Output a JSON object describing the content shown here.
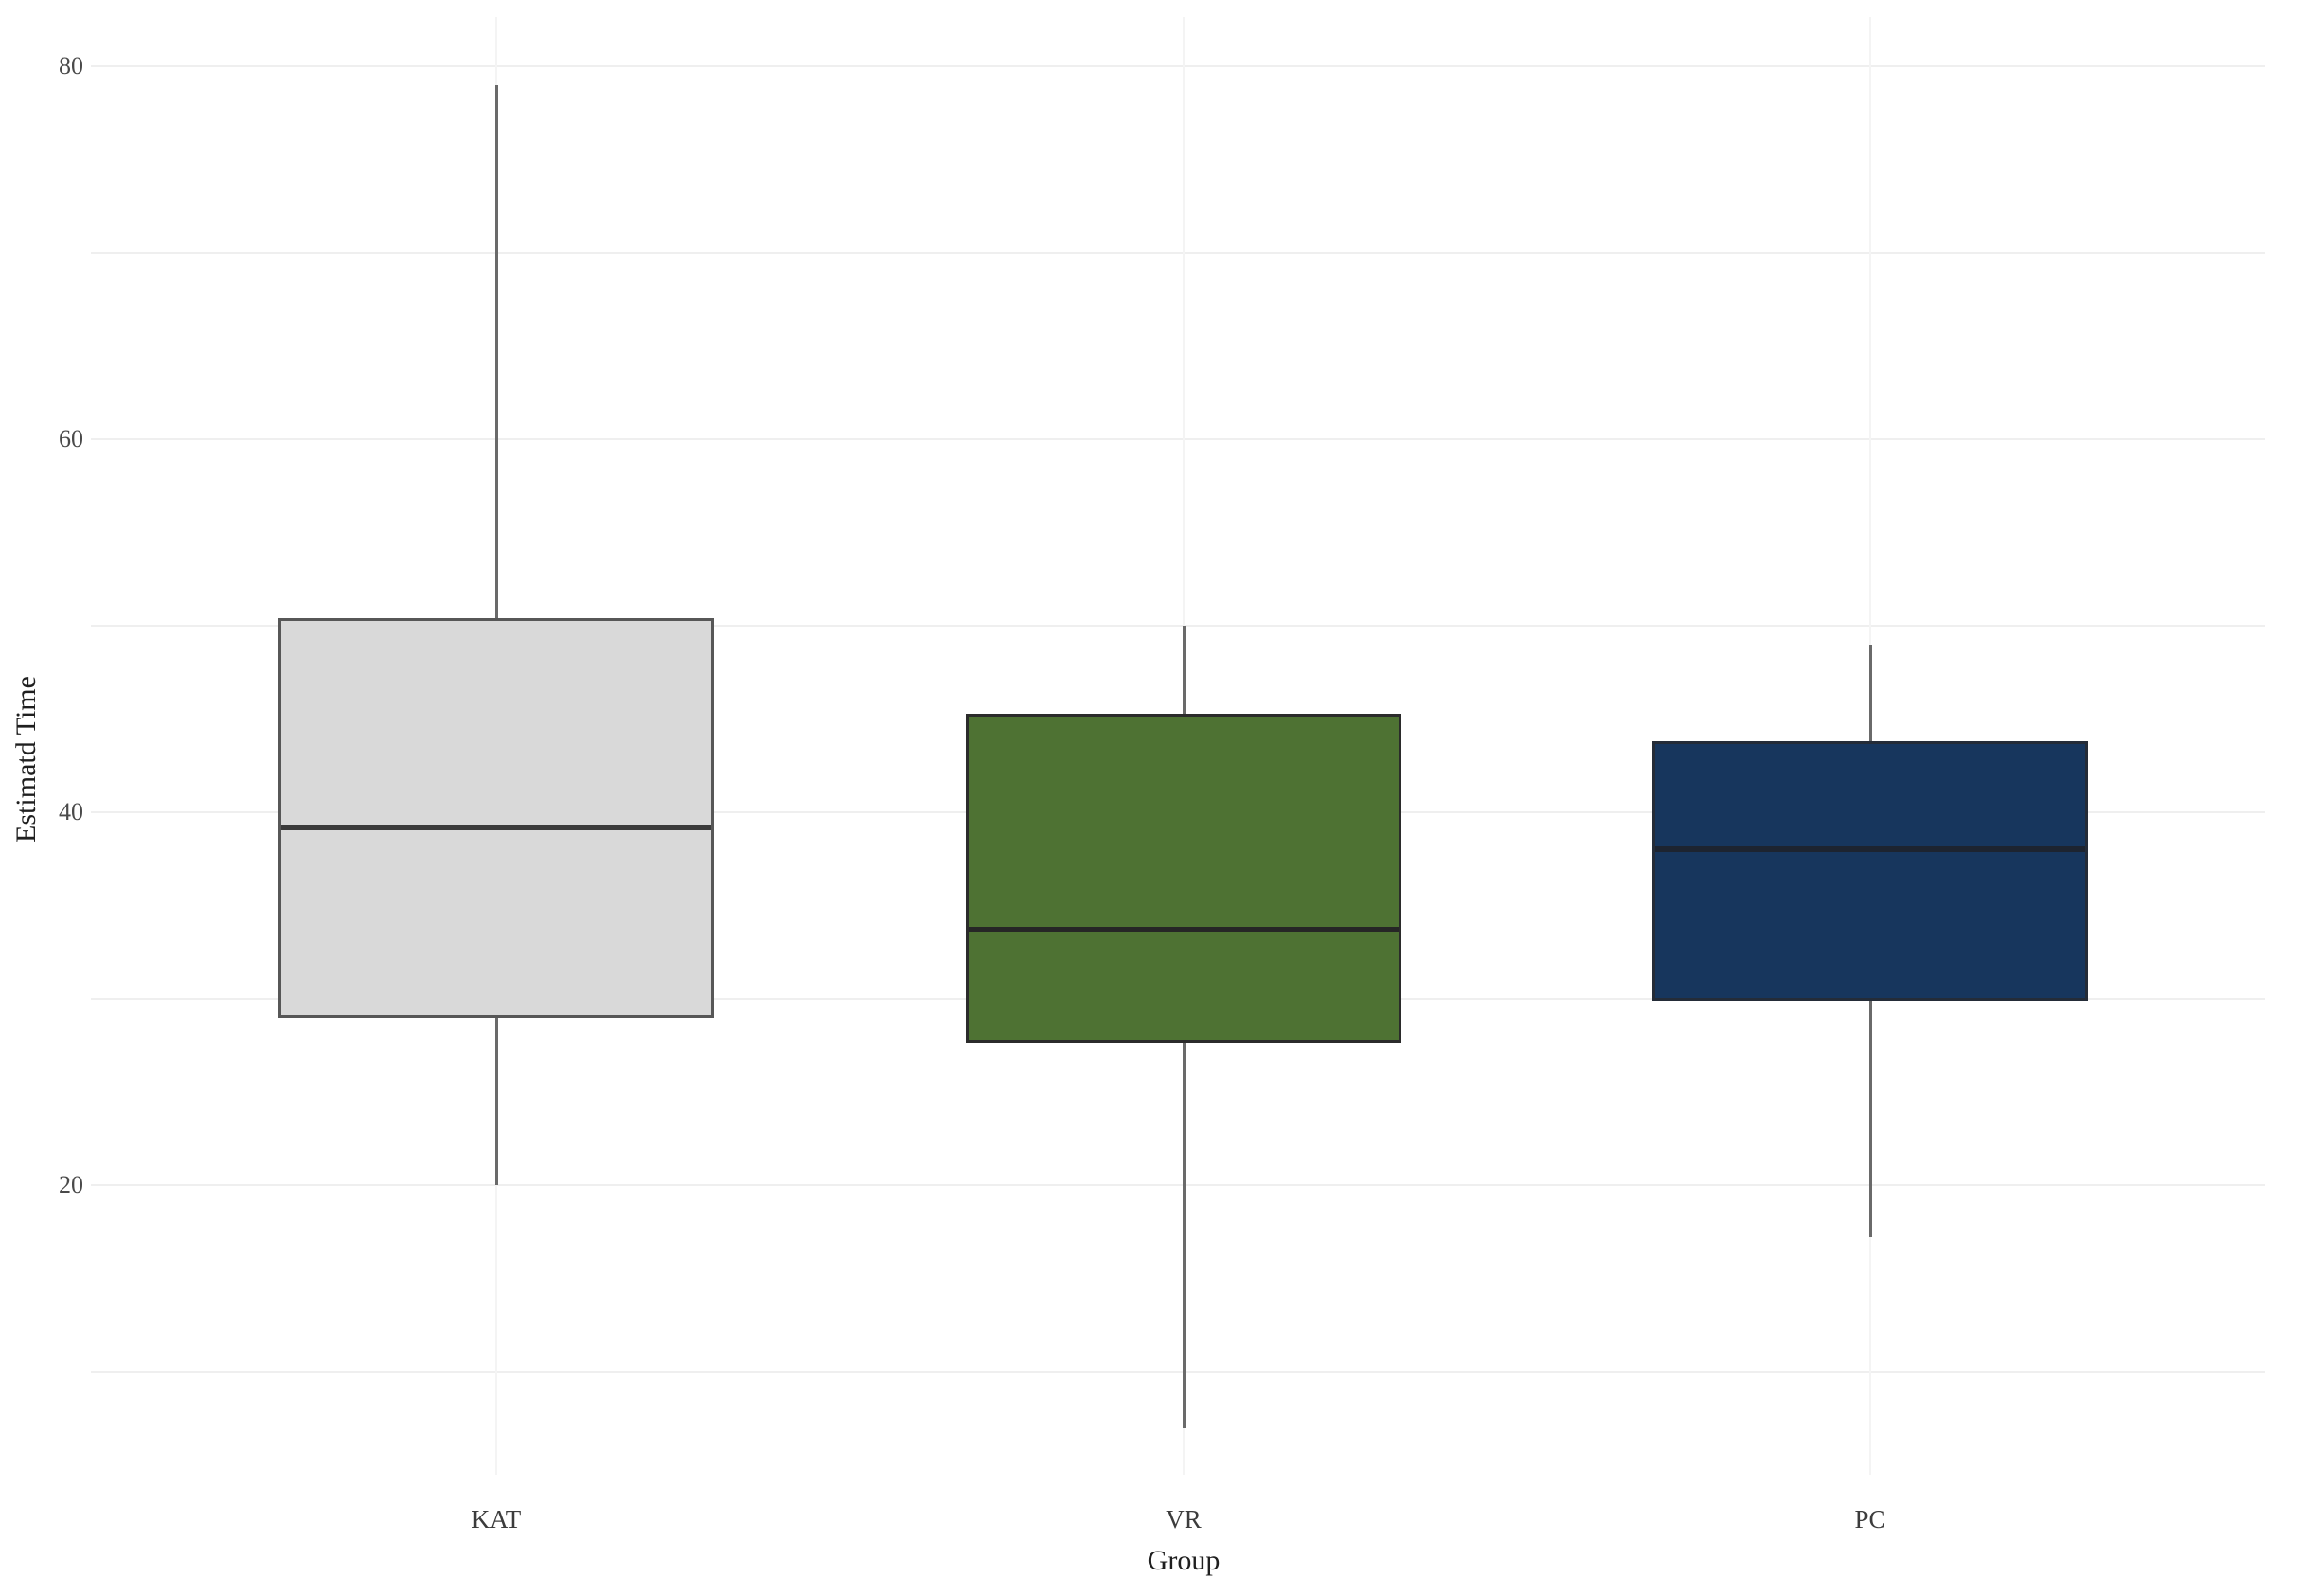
{
  "chart_data": {
    "type": "box",
    "title": "",
    "xlabel": "Group",
    "ylabel": "Estimatd Time",
    "categories": [
      "KAT",
      "VR",
      "PC"
    ],
    "series": [
      {
        "name": "KAT",
        "min": 20,
        "q1": 29,
        "median": 39.2,
        "q3": 50.4,
        "max": 79,
        "fill": "#d9d9d9",
        "stroke": "#575757",
        "median_color": "#3b3b3b"
      },
      {
        "name": "VR",
        "min": 7,
        "q1": 27.6,
        "median": 33.7,
        "q3": 45.3,
        "max": 50,
        "fill": "#4e7233",
        "stroke": "#2b2b2b",
        "median_color": "#262626"
      },
      {
        "name": "PC",
        "min": 17.2,
        "q1": 29.9,
        "median": 38,
        "q3": 43.8,
        "max": 49,
        "fill": "#17365d",
        "stroke": "#242c38",
        "median_color": "#1d2430"
      }
    ],
    "ylim": [
      0,
      82
    ],
    "yticks_labeled": [
      20,
      40,
      60,
      80
    ],
    "gridline_values": [
      10,
      20,
      30,
      40,
      50,
      60,
      70,
      80
    ],
    "grid": "light horizontal gridlines every 10 units; very faint vertical gridline at each category center",
    "legend": "none",
    "orientation": "vertical",
    "whisker_caps": false
  },
  "colors": {
    "background": "#ffffff",
    "gridline_h": "#efefef",
    "gridline_v": "#f4f4f4",
    "whisker": "#6a6a6a",
    "tick_text": "#4a4a4a",
    "axis_title_text": "#1f1f1f"
  }
}
